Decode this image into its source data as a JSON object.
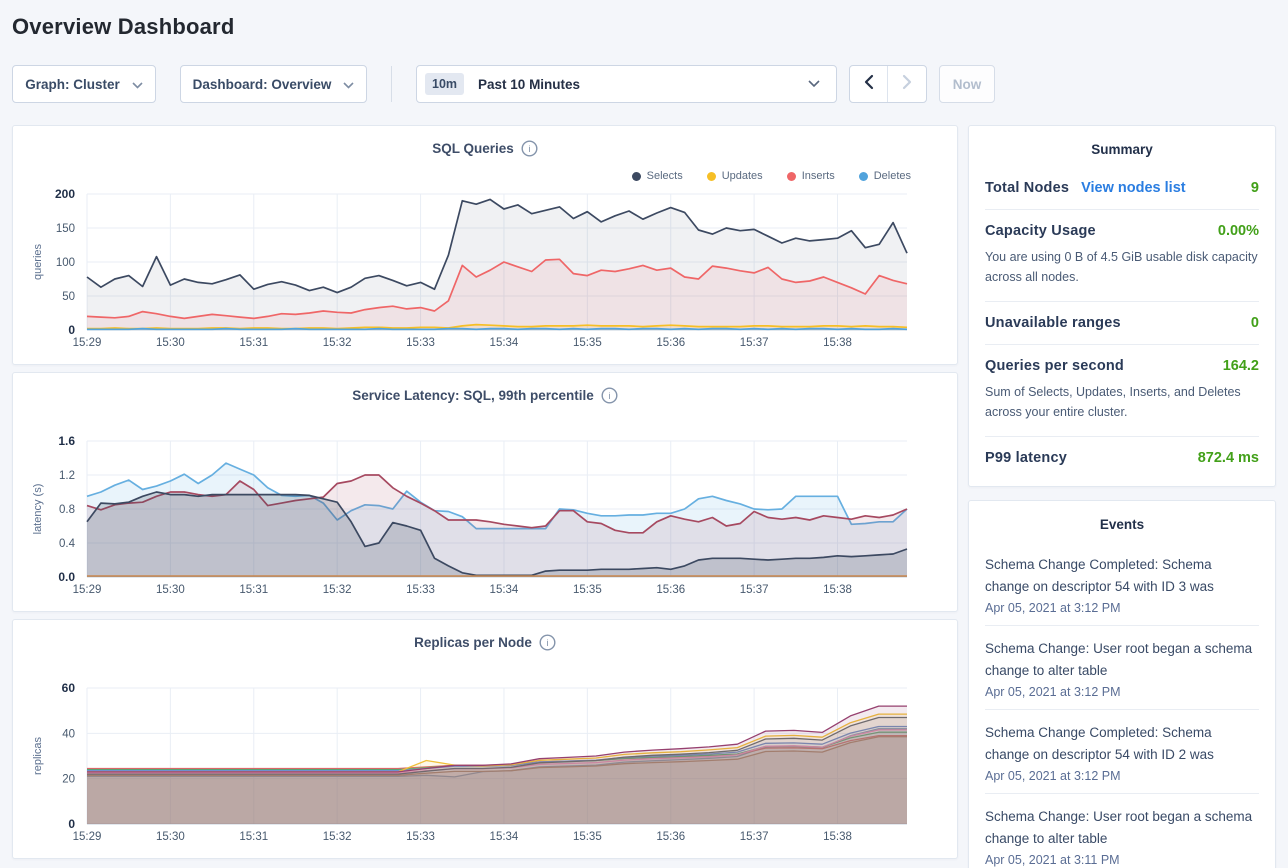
{
  "page": {
    "title": "Overview Dashboard"
  },
  "toolbar": {
    "graph_dropdown": "Graph: Cluster",
    "dashboard_dropdown": "Dashboard: Overview",
    "time_badge": "10m",
    "time_label": "Past 10 Minutes",
    "now_label": "Now"
  },
  "chart_data": [
    {
      "type": "area",
      "title": "SQL Queries",
      "ylabel": "queries",
      "ylim": [
        0,
        200
      ],
      "y_ticks": [
        0,
        50,
        100,
        150,
        200
      ],
      "y_tick_labels": [
        "0",
        "50",
        "100",
        "150",
        "200"
      ],
      "x_labels": [
        "15:29",
        "15:30",
        "15:31",
        "15:32",
        "15:33",
        "15:34",
        "15:35",
        "15:36",
        "15:37",
        "15:38"
      ],
      "x_span_seconds": 590,
      "x_label_interval_seconds": 60,
      "grid": true,
      "legend_position": "top-right",
      "legend": [
        {
          "label": "Selects",
          "color": "#3c4961"
        },
        {
          "label": "Updates",
          "color": "#f6bf26"
        },
        {
          "label": "Inserts",
          "color": "#ef6667"
        },
        {
          "label": "Deletes",
          "color": "#51a3dc"
        }
      ],
      "series": [
        {
          "name": "Selects",
          "color": "#3c4961",
          "fill": "rgba(60,73,97,0.08)",
          "width": 1.7,
          "values": [
            78,
            63,
            75,
            80,
            64,
            108,
            66,
            75,
            70,
            68,
            74,
            81,
            60,
            67,
            71,
            66,
            58,
            63,
            55,
            63,
            76,
            80,
            73,
            65,
            70,
            60,
            110,
            190,
            185,
            192,
            178,
            184,
            171,
            176,
            181,
            164,
            174,
            159,
            168,
            175,
            163,
            172,
            180,
            173,
            147,
            141,
            150,
            146,
            148,
            138,
            128,
            135,
            131,
            133,
            135,
            146,
            121,
            126,
            158,
            113
          ]
        },
        {
          "name": "Inserts",
          "color": "#ef6667",
          "fill": "rgba(239,102,103,0.10)",
          "width": 1.7,
          "values": [
            20,
            19,
            18,
            20,
            27,
            24,
            20,
            17,
            20,
            23,
            21,
            19,
            17,
            20,
            24,
            23,
            25,
            28,
            26,
            25,
            30,
            33,
            35,
            31,
            33,
            28,
            43,
            95,
            78,
            88,
            100,
            93,
            86,
            103,
            104,
            83,
            80,
            88,
            86,
            90,
            95,
            88,
            91,
            78,
            75,
            94,
            91,
            87,
            84,
            92,
            75,
            70,
            72,
            78,
            70,
            62,
            53,
            80,
            73,
            68
          ]
        },
        {
          "name": "Updates",
          "color": "#f6bf26",
          "fill": "rgba(246,191,38,0.12)",
          "width": 1.7,
          "values": [
            2,
            2,
            3,
            2,
            2,
            3,
            2,
            2,
            2,
            3,
            3,
            2,
            3,
            3,
            2,
            2,
            3,
            3,
            2,
            3,
            4,
            4,
            3,
            3,
            4,
            4,
            3,
            6,
            8,
            7,
            6,
            5,
            5,
            6,
            6,
            6,
            7,
            6,
            6,
            6,
            5,
            6,
            7,
            6,
            5,
            5,
            5,
            5,
            6,
            6,
            5,
            5,
            5,
            6,
            6,
            5,
            6,
            5,
            5,
            4
          ]
        },
        {
          "name": "Deletes",
          "color": "#51a3dc",
          "fill": "rgba(81,163,220,0.15)",
          "width": 1.7,
          "values": [
            1,
            1,
            1,
            1,
            2,
            1,
            1,
            1,
            1,
            1,
            2,
            1,
            1,
            1,
            1,
            2,
            1,
            1,
            1,
            1,
            1,
            2,
            1,
            1,
            1,
            1,
            2,
            2,
            1,
            2,
            2,
            1,
            2,
            2,
            1,
            2,
            1,
            2,
            2,
            1,
            2,
            2,
            1,
            2,
            1,
            2,
            2,
            1,
            2,
            1,
            2,
            1,
            2,
            2,
            1,
            2,
            1,
            1,
            2,
            1
          ]
        }
      ]
    },
    {
      "type": "area",
      "title": "Service Latency: SQL, 99th percentile",
      "ylabel": "latency (s)",
      "ylim": [
        0,
        1.6
      ],
      "y_ticks": [
        0,
        0.4,
        0.8,
        1.2,
        1.6
      ],
      "y_tick_labels": [
        "0.0",
        "0.4",
        "0.8",
        "1.2",
        "1.6"
      ],
      "x_labels": [
        "15:29",
        "15:30",
        "15:31",
        "15:32",
        "15:33",
        "15:34",
        "15:35",
        "15:36",
        "15:37",
        "15:38"
      ],
      "x_span_seconds": 590,
      "x_label_interval_seconds": 60,
      "grid": true,
      "series": [
        {
          "name": "series-blue",
          "color": "#66afe0",
          "fill": "rgba(102,175,224,0.14)",
          "width": 1.7,
          "values": [
            0.95,
            1.0,
            1.08,
            1.14,
            1.03,
            1.07,
            1.13,
            1.21,
            1.1,
            1.2,
            1.34,
            1.27,
            1.2,
            1.05,
            0.96,
            0.95,
            0.96,
            0.87,
            0.67,
            0.78,
            0.85,
            0.84,
            0.8,
            1.01,
            0.88,
            0.78,
            0.77,
            0.71,
            0.57,
            0.57,
            0.57,
            0.57,
            0.57,
            0.57,
            0.8,
            0.79,
            0.75,
            0.72,
            0.72,
            0.73,
            0.73,
            0.75,
            0.75,
            0.8,
            0.92,
            0.95,
            0.9,
            0.86,
            0.8,
            0.79,
            0.8,
            0.95,
            0.95,
            0.95,
            0.95,
            0.62,
            0.63,
            0.65,
            0.65,
            0.8
          ]
        },
        {
          "name": "series-maroon",
          "color": "#a64960",
          "fill": "rgba(166,73,96,0.12)",
          "width": 1.7,
          "values": [
            0.84,
            0.79,
            0.85,
            0.87,
            0.88,
            0.95,
            1.0,
            1.0,
            0.97,
            0.95,
            0.97,
            1.13,
            1.03,
            0.84,
            0.87,
            0.9,
            0.92,
            0.94,
            1.1,
            1.13,
            1.2,
            1.2,
            1.05,
            0.95,
            0.87,
            0.78,
            0.67,
            0.67,
            0.67,
            0.65,
            0.62,
            0.6,
            0.58,
            0.6,
            0.78,
            0.78,
            0.65,
            0.63,
            0.55,
            0.52,
            0.52,
            0.65,
            0.72,
            0.68,
            0.65,
            0.7,
            0.6,
            0.63,
            0.77,
            0.7,
            0.68,
            0.7,
            0.67,
            0.72,
            0.7,
            0.68,
            0.72,
            0.7,
            0.73,
            0.8
          ]
        },
        {
          "name": "series-navy",
          "color": "#3c4961",
          "fill": "rgba(60,73,97,0.20)",
          "width": 1.7,
          "values": [
            0.65,
            0.87,
            0.86,
            0.88,
            0.95,
            1.0,
            0.97,
            0.97,
            0.95,
            0.97,
            0.97,
            0.97,
            0.97,
            0.97,
            0.97,
            0.97,
            0.96,
            0.92,
            0.88,
            0.65,
            0.36,
            0.4,
            0.64,
            0.6,
            0.55,
            0.22,
            0.13,
            0.05,
            0.02,
            0.02,
            0.02,
            0.02,
            0.02,
            0.07,
            0.08,
            0.08,
            0.08,
            0.09,
            0.09,
            0.09,
            0.1,
            0.11,
            0.09,
            0.13,
            0.2,
            0.22,
            0.22,
            0.22,
            0.21,
            0.2,
            0.21,
            0.22,
            0.22,
            0.23,
            0.25,
            0.24,
            0.25,
            0.26,
            0.27,
            0.33
          ]
        },
        {
          "name": "series-orange",
          "color": "#c8874f",
          "fill": "rgba(200,135,79,0.10)",
          "width": 1.5,
          "values": [
            0.012,
            0.012
          ]
        }
      ]
    },
    {
      "type": "area",
      "title": "Replicas per Node",
      "ylabel": "replicas",
      "ylim": [
        0,
        60
      ],
      "y_ticks": [
        0,
        20,
        40,
        60
      ],
      "y_tick_labels": [
        "0",
        "20",
        "40",
        "60"
      ],
      "x_labels": [
        "15:29",
        "15:30",
        "15:31",
        "15:32",
        "15:33",
        "15:34",
        "15:35",
        "15:36",
        "15:37",
        "15:38"
      ],
      "x_span_seconds": 590,
      "x_label_interval_seconds": 60,
      "grid": true,
      "series": [
        {
          "name": "node-slate",
          "color": "#7f9ab5",
          "fill": "rgba(127,154,181,0.12)",
          "width": 1.3,
          "values": [
            21,
            21,
            21,
            21,
            21,
            21,
            21,
            21,
            21,
            21,
            21,
            21,
            21.5,
            20.8,
            23.1,
            23.5,
            25.2,
            25.6,
            26.0,
            27.3,
            27.9,
            28.4,
            29.0,
            29.8,
            34.0,
            34.2,
            33.6,
            38.9,
            42.0,
            42.0
          ]
        },
        {
          "name": "node-brown",
          "color": "#ad7f63",
          "fill": "rgba(173,127,99,0.14)",
          "width": 1.3,
          "values": [
            21.5,
            21.5,
            21.5,
            21.5,
            21.5,
            21.5,
            21.5,
            21.5,
            21.5,
            21.5,
            21.5,
            21.5,
            22.4,
            23.2,
            23.2,
            23.5,
            24.9,
            25.2,
            25.6,
            26.6,
            27.1,
            27.5,
            28.0,
            28.6,
            32.0,
            32.2,
            31.7,
            35.9,
            38.5,
            38.5
          ]
        },
        {
          "name": "node-red",
          "color": "#d96767",
          "fill": "rgba(217,103,103,0.13)",
          "width": 1.3,
          "values": [
            24.5,
            24.5,
            24.5,
            24.5,
            24.5,
            24.5,
            24.5,
            24.5,
            24.5,
            24.5,
            24.5,
            24.5,
            25.2,
            25.9,
            25.9,
            26.2,
            27.4,
            27.7,
            28.0,
            28.9,
            29.3,
            29.6,
            30.0,
            30.6,
            33.5,
            33.6,
            33.2,
            36.8,
            39.0,
            39.0
          ]
        },
        {
          "name": "node-green",
          "color": "#56a671",
          "fill": "rgba(86,166,113,0.12)",
          "width": 1.3,
          "values": [
            24,
            24,
            24,
            24,
            24,
            24,
            24,
            24,
            24,
            24,
            24,
            24,
            24.8,
            25.7,
            25.7,
            26.0,
            27.3,
            27.6,
            28.0,
            29.0,
            29.4,
            29.8,
            30.3,
            30.9,
            34.2,
            34.4,
            33.9,
            38.0,
            40.5,
            40.5
          ]
        },
        {
          "name": "node-blue",
          "color": "#6d8fd0",
          "fill": "rgba(109,143,208,0.11)",
          "width": 1.3,
          "values": [
            23.5,
            23.5,
            23.5,
            23.5,
            23.5,
            23.5,
            23.5,
            23.5,
            23.5,
            23.5,
            23.5,
            23.5,
            24.5,
            25.5,
            25.5,
            25.8,
            27.4,
            27.8,
            28.2,
            29.4,
            29.9,
            30.3,
            30.9,
            31.7,
            35.6,
            35.8,
            35.2,
            40.1,
            43.0,
            43.0
          ]
        },
        {
          "name": "node-pink",
          "color": "#df8ebd",
          "fill": "rgba(223,142,189,0.11)",
          "width": 1.3,
          "values": [
            22.5,
            22.5,
            22.5,
            22.5,
            22.5,
            22.5,
            22.5,
            22.5,
            22.5,
            22.5,
            22.5,
            22.5,
            23.5,
            24.4,
            24.4,
            24.8,
            26.3,
            26.7,
            27.1,
            28.2,
            28.8,
            29.2,
            29.7,
            30.5,
            34.3,
            34.5,
            33.9,
            38.7,
            41.5,
            41.5
          ]
        },
        {
          "name": "node-gray",
          "color": "#5c6776",
          "fill": "rgba(92,103,118,0.11)",
          "width": 1.3,
          "values": [
            22,
            22,
            22,
            22,
            22,
            22,
            22,
            22,
            22,
            22,
            22,
            22,
            23.3,
            24.5,
            24.5,
            25.0,
            27.0,
            27.5,
            28.0,
            29.5,
            30.3,
            30.8,
            31.5,
            32.5,
            37.5,
            37.8,
            37.0,
            43.3,
            47.0,
            47.0
          ]
        },
        {
          "name": "node-yellow",
          "color": "#f0bf3a",
          "fill": "rgba(240,191,58,0.11)",
          "width": 1.3,
          "values": [
            23,
            23,
            23,
            23,
            23,
            23,
            23,
            23,
            23,
            23,
            23,
            23,
            28.0,
            26.0,
            25.6,
            26.1,
            28.1,
            28.6,
            29.1,
            30.7,
            31.4,
            31.9,
            32.7,
            33.7,
            38.8,
            39.1,
            38.3,
            44.7,
            48.5,
            48.5
          ]
        },
        {
          "name": "node-purple",
          "color": "#96406f",
          "fill": "rgba(150,64,111,0.11)",
          "width": 1.3,
          "values": [
            23,
            23,
            23,
            23,
            23,
            23,
            23,
            23,
            23,
            23,
            23,
            23,
            24.5,
            25.9,
            25.9,
            26.5,
            28.8,
            29.4,
            30.0,
            31.7,
            32.6,
            33.2,
            34.0,
            35.2,
            41.0,
            41.3,
            40.4,
            47.7,
            52.0,
            52.0
          ]
        }
      ]
    }
  ],
  "summary": {
    "title": "Summary",
    "total_nodes_label": "Total Nodes",
    "total_nodes_link": "View nodes list",
    "total_nodes_value": "9",
    "capacity_label": "Capacity Usage",
    "capacity_value": "0.00%",
    "capacity_desc": "You are using 0 B of 4.5 GiB usable disk capacity across all nodes.",
    "unavailable_label": "Unavailable ranges",
    "unavailable_value": "0",
    "qps_label": "Queries per second",
    "qps_value": "164.2",
    "qps_desc": "Sum of Selects, Updates, Inserts, and Deletes across your entire cluster.",
    "p99_label": "P99 latency",
    "p99_value": "872.4 ms",
    "value_color": "#42a019",
    "link_color": "#2a7de1"
  },
  "events": {
    "title": "Events",
    "items": [
      {
        "text": "Schema Change Completed: Schema change on descriptor 54 with ID 3 was",
        "time": "Apr 05, 2021 at 3:12 PM"
      },
      {
        "text": "Schema Change: User root began a schema change to alter table",
        "time": "Apr 05, 2021 at 3:12 PM"
      },
      {
        "text": "Schema Change Completed: Schema change on descriptor 54 with ID 2 was",
        "time": "Apr 05, 2021 at 3:12 PM"
      },
      {
        "text": "Schema Change: User root began a schema change to alter table",
        "time": "Apr 05, 2021 at 3:11 PM"
      }
    ]
  }
}
